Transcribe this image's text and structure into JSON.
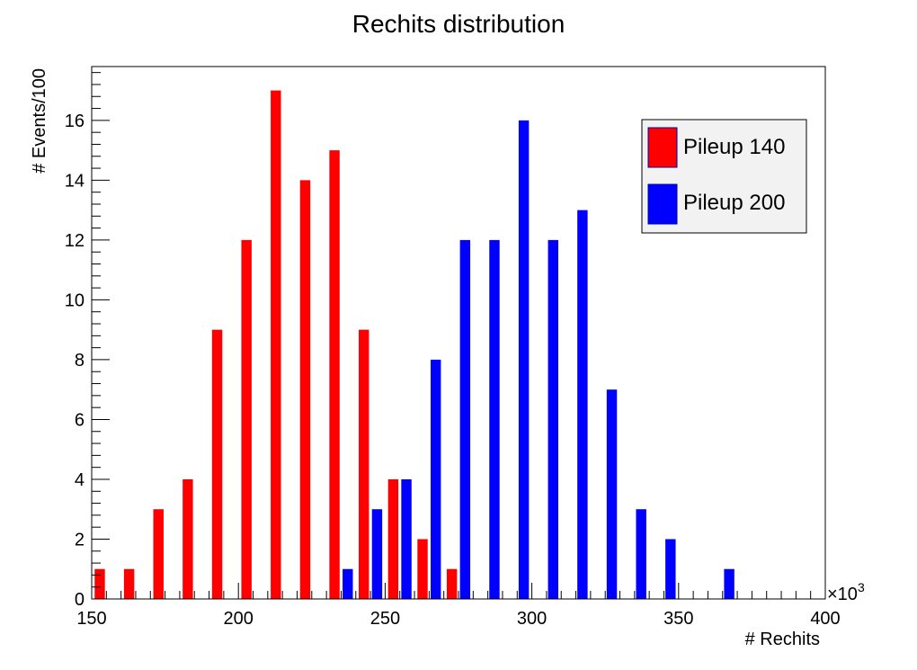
{
  "chart_data": {
    "type": "bar",
    "title": "Rechits distribution",
    "xlabel": "# Rechits",
    "ylabel": "# Events/100",
    "x_multiplier_label": "×10",
    "x_multiplier_exp": "3",
    "xlim": [
      150,
      400
    ],
    "ylim": [
      0,
      17.8
    ],
    "x_ticks": [
      150,
      200,
      250,
      300,
      350,
      400
    ],
    "y_ticks": [
      0,
      2,
      4,
      6,
      8,
      10,
      12,
      14,
      16
    ],
    "bin_width": 10,
    "bins": [
      150,
      160,
      170,
      180,
      190,
      200,
      210,
      220,
      230,
      240,
      250,
      260,
      270,
      280,
      290,
      300,
      310,
      320,
      330,
      340,
      350,
      360,
      370,
      380,
      390
    ],
    "grid": false,
    "legend_position": "top-right",
    "series": [
      {
        "name": "Pileup 140",
        "color": "#ff0000",
        "values": [
          1,
          1,
          3,
          4,
          9,
          12,
          17,
          14,
          15,
          9,
          4,
          2,
          1,
          0,
          0,
          0,
          0,
          0,
          0,
          0,
          0,
          0,
          0,
          0,
          0
        ]
      },
      {
        "name": "Pileup 200",
        "color": "#0000ff",
        "values": [
          0,
          0,
          0,
          0,
          0,
          0,
          0,
          0,
          1,
          3,
          4,
          8,
          12,
          12,
          16,
          12,
          13,
          7,
          3,
          2,
          0,
          1,
          0,
          0,
          0
        ]
      }
    ]
  }
}
